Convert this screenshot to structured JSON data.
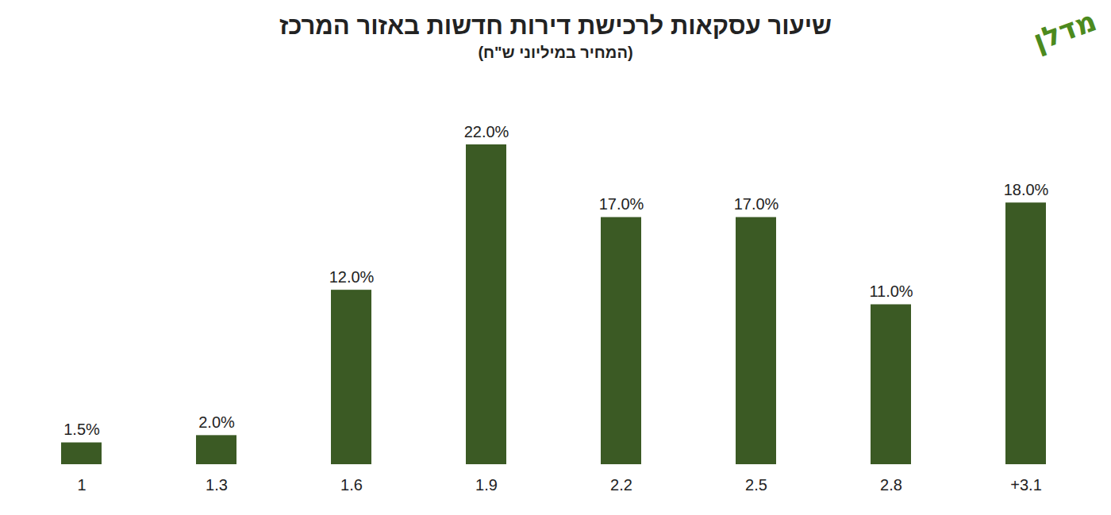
{
  "chart_data": {
    "type": "bar",
    "title": "שיעור עסקאות לרכישת דירות חדשות באזור המרכז",
    "subtitle": "(המחיר במיליוני ש\"ח)",
    "logo": "מדלן",
    "categories": [
      "1",
      "1.3",
      "1.6",
      "1.9",
      "2.2",
      "2.5",
      "2.8",
      "+3.1"
    ],
    "values": [
      1.5,
      2,
      12,
      22,
      17,
      17,
      11,
      18
    ],
    "value_labels": [
      "1.5%",
      "2.0%",
      "12.0%",
      "22.0%",
      "17.0%",
      "17.0%",
      "11.0%",
      "18.0%"
    ],
    "color": "#3b5a24",
    "ylim": [
      0,
      25
    ],
    "grid": false,
    "data_labels": true,
    "tick_labels": "x"
  }
}
